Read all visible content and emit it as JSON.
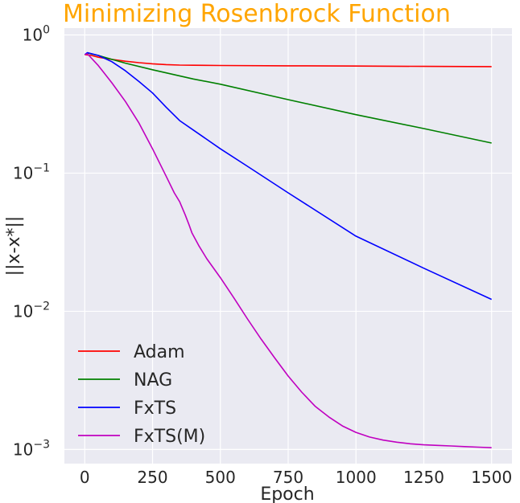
{
  "chart_data": {
    "type": "line",
    "title": "Minimizing Rosenbrock Function",
    "xlabel": "Epoch",
    "ylabel": "||x-x*||",
    "xlim": [
      -75,
      1575
    ],
    "ylim": [
      0.00079,
      1.12
    ],
    "yscale": "log",
    "grid": true,
    "legend_position": "lower-left",
    "x_ticks": [
      0,
      250,
      500,
      750,
      1000,
      1250,
      1500
    ],
    "y_ticks": [
      {
        "value": 1,
        "base": "10",
        "exp": "0"
      },
      {
        "value": 0.1,
        "base": "10",
        "exp": "−1"
      },
      {
        "value": 0.01,
        "base": "10",
        "exp": "−2"
      },
      {
        "value": 0.001,
        "base": "10",
        "exp": "−3"
      }
    ],
    "series": [
      {
        "name": "Adam",
        "color": "#FF0000",
        "x": [
          0,
          25,
          50,
          100,
          150,
          200,
          250,
          300,
          350,
          400,
          500,
          750,
          1000,
          1250,
          1500
        ],
        "y": [
          0.72,
          0.71,
          0.69,
          0.665,
          0.645,
          0.63,
          0.618,
          0.61,
          0.605,
          0.603,
          0.601,
          0.598,
          0.595,
          0.592,
          0.59
        ]
      },
      {
        "name": "NAG",
        "color": "#008000",
        "x": [
          0,
          10,
          50,
          100,
          150,
          250,
          400,
          500,
          750,
          1000,
          1250,
          1500
        ],
        "y": [
          0.72,
          0.74,
          0.71,
          0.665,
          0.625,
          0.56,
          0.48,
          0.44,
          0.34,
          0.265,
          0.21,
          0.165
        ]
      },
      {
        "name": "FxTS",
        "color": "#0000FF",
        "x": [
          0,
          10,
          50,
          100,
          150,
          200,
          250,
          300,
          350,
          400,
          500,
          600,
          750,
          1000,
          1250,
          1500
        ],
        "y": [
          0.72,
          0.745,
          0.71,
          0.64,
          0.55,
          0.46,
          0.38,
          0.3,
          0.24,
          0.205,
          0.15,
          0.112,
          0.072,
          0.035,
          0.0205,
          0.0122
        ]
      },
      {
        "name": "FxTS(M)",
        "color": "#C000C0",
        "x": [
          0,
          10,
          50,
          100,
          150,
          200,
          250,
          300,
          330,
          350,
          370,
          385,
          395,
          420,
          450,
          500,
          550,
          600,
          650,
          700,
          750,
          800,
          850,
          900,
          950,
          1000,
          1050,
          1100,
          1150,
          1200,
          1250,
          1300,
          1350,
          1400,
          1450,
          1500
        ],
        "y": [
          0.72,
          0.73,
          0.6,
          0.45,
          0.33,
          0.23,
          0.15,
          0.095,
          0.072,
          0.062,
          0.05,
          0.042,
          0.037,
          0.03,
          0.024,
          0.0175,
          0.0125,
          0.0088,
          0.0063,
          0.0046,
          0.0034,
          0.0026,
          0.00205,
          0.00172,
          0.00148,
          0.00133,
          0.00123,
          0.00117,
          0.00113,
          0.0011,
          0.00108,
          0.00107,
          0.00106,
          0.00105,
          0.00104,
          0.00103
        ]
      }
    ]
  }
}
